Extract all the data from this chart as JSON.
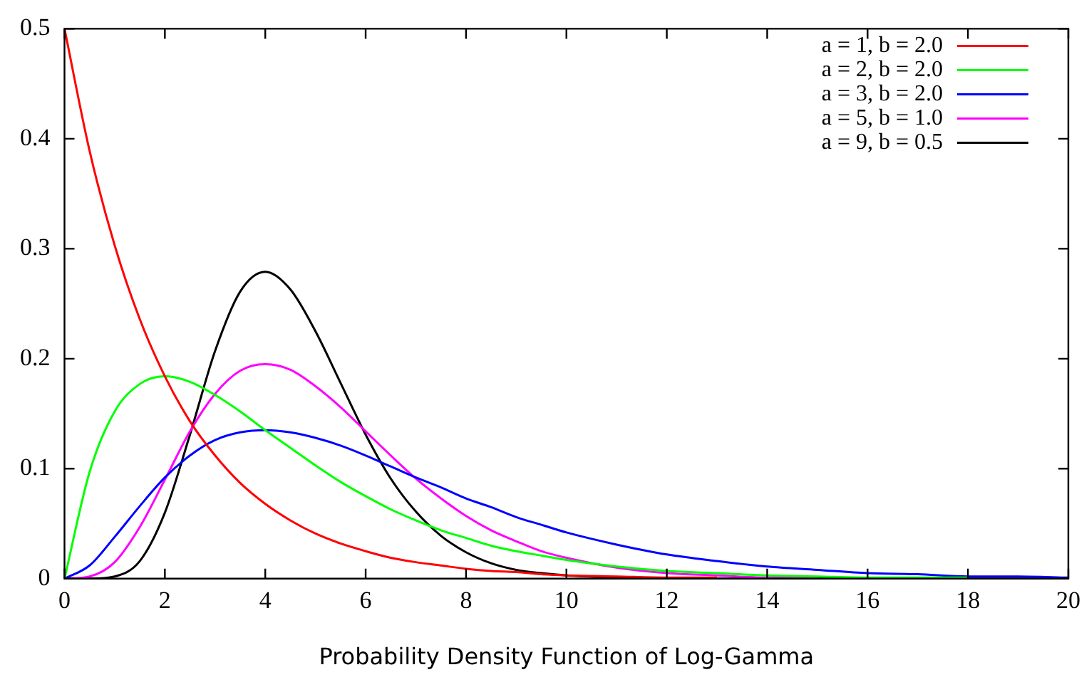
{
  "chart_data": {
    "type": "line",
    "xlabel": "Probability Density Function of Log-Gamma",
    "x": [
      0,
      0.5,
      1,
      1.5,
      2,
      2.5,
      3,
      3.5,
      4,
      4.5,
      5,
      5.5,
      6,
      6.5,
      7,
      7.5,
      8,
      8.5,
      9,
      9.5,
      10,
      11,
      12,
      13,
      14,
      15,
      16,
      17,
      18,
      19,
      20
    ],
    "series": [
      {
        "name": "a = 1, b = 2.0",
        "color": "#ff0000",
        "values": [
          0.5,
          0.389,
          0.303,
          0.236,
          0.184,
          0.143,
          0.112,
          0.087,
          0.068,
          0.053,
          0.041,
          0.032,
          0.025,
          0.019,
          0.015,
          0.012,
          0.009,
          0.007,
          0.006,
          0.004,
          0.003,
          0.002,
          0.001,
          0.001,
          null,
          null,
          null,
          null,
          null,
          null,
          null
        ]
      },
      {
        "name": "a = 2, b = 2.0",
        "color": "#00ff00",
        "values": [
          0,
          0.097,
          0.152,
          0.177,
          0.184,
          0.179,
          0.167,
          0.152,
          0.135,
          0.119,
          0.103,
          0.088,
          0.075,
          0.063,
          0.053,
          0.044,
          0.037,
          0.03,
          0.025,
          0.021,
          0.017,
          0.011,
          0.007,
          0.005,
          0.003,
          0.002,
          0.001,
          0.001,
          0.001,
          null,
          null
        ]
      },
      {
        "name": "a = 3, b = 2.0",
        "color": "#0000ff",
        "values": [
          0,
          0.012,
          0.038,
          0.066,
          0.092,
          0.112,
          0.126,
          0.133,
          0.135,
          0.133,
          0.128,
          0.121,
          0.112,
          0.102,
          0.092,
          0.083,
          0.073,
          0.065,
          0.056,
          0.049,
          0.042,
          0.031,
          0.022,
          0.016,
          0.011,
          0.008,
          0.005,
          0.004,
          0.002,
          0.002,
          0.001
        ]
      },
      {
        "name": "a = 5, b = 1.0",
        "color": "#ff00ff",
        "values": [
          0,
          0.002,
          0.015,
          0.047,
          0.09,
          0.134,
          0.168,
          0.189,
          0.195,
          0.19,
          0.175,
          0.156,
          0.134,
          0.112,
          0.091,
          0.073,
          0.057,
          0.044,
          0.034,
          0.025,
          0.019,
          0.01,
          0.005,
          0.003,
          0.001,
          0.001,
          null,
          null,
          null,
          null,
          null
        ]
      },
      {
        "name": "a = 9, b = 0.5",
        "color": "#000000",
        "values": [
          0,
          0,
          0.002,
          0.016,
          0.06,
          0.131,
          0.207,
          0.261,
          0.279,
          0.263,
          0.225,
          0.178,
          0.131,
          0.091,
          0.061,
          0.039,
          0.024,
          0.014,
          0.008,
          0.005,
          0.003,
          0.001,
          0,
          0,
          0,
          0,
          0,
          0,
          0,
          0,
          0
        ]
      }
    ],
    "xlim": [
      0,
      20
    ],
    "xticks": [
      0,
      2,
      4,
      6,
      8,
      10,
      12,
      14,
      16,
      18,
      20
    ],
    "ylim": [
      0,
      0.5
    ],
    "yticks": [
      0,
      0.1,
      0.2,
      0.3,
      0.4,
      0.5
    ],
    "grid": false,
    "legend": "top right",
    "marker": "none",
    "line_style": "solid"
  }
}
